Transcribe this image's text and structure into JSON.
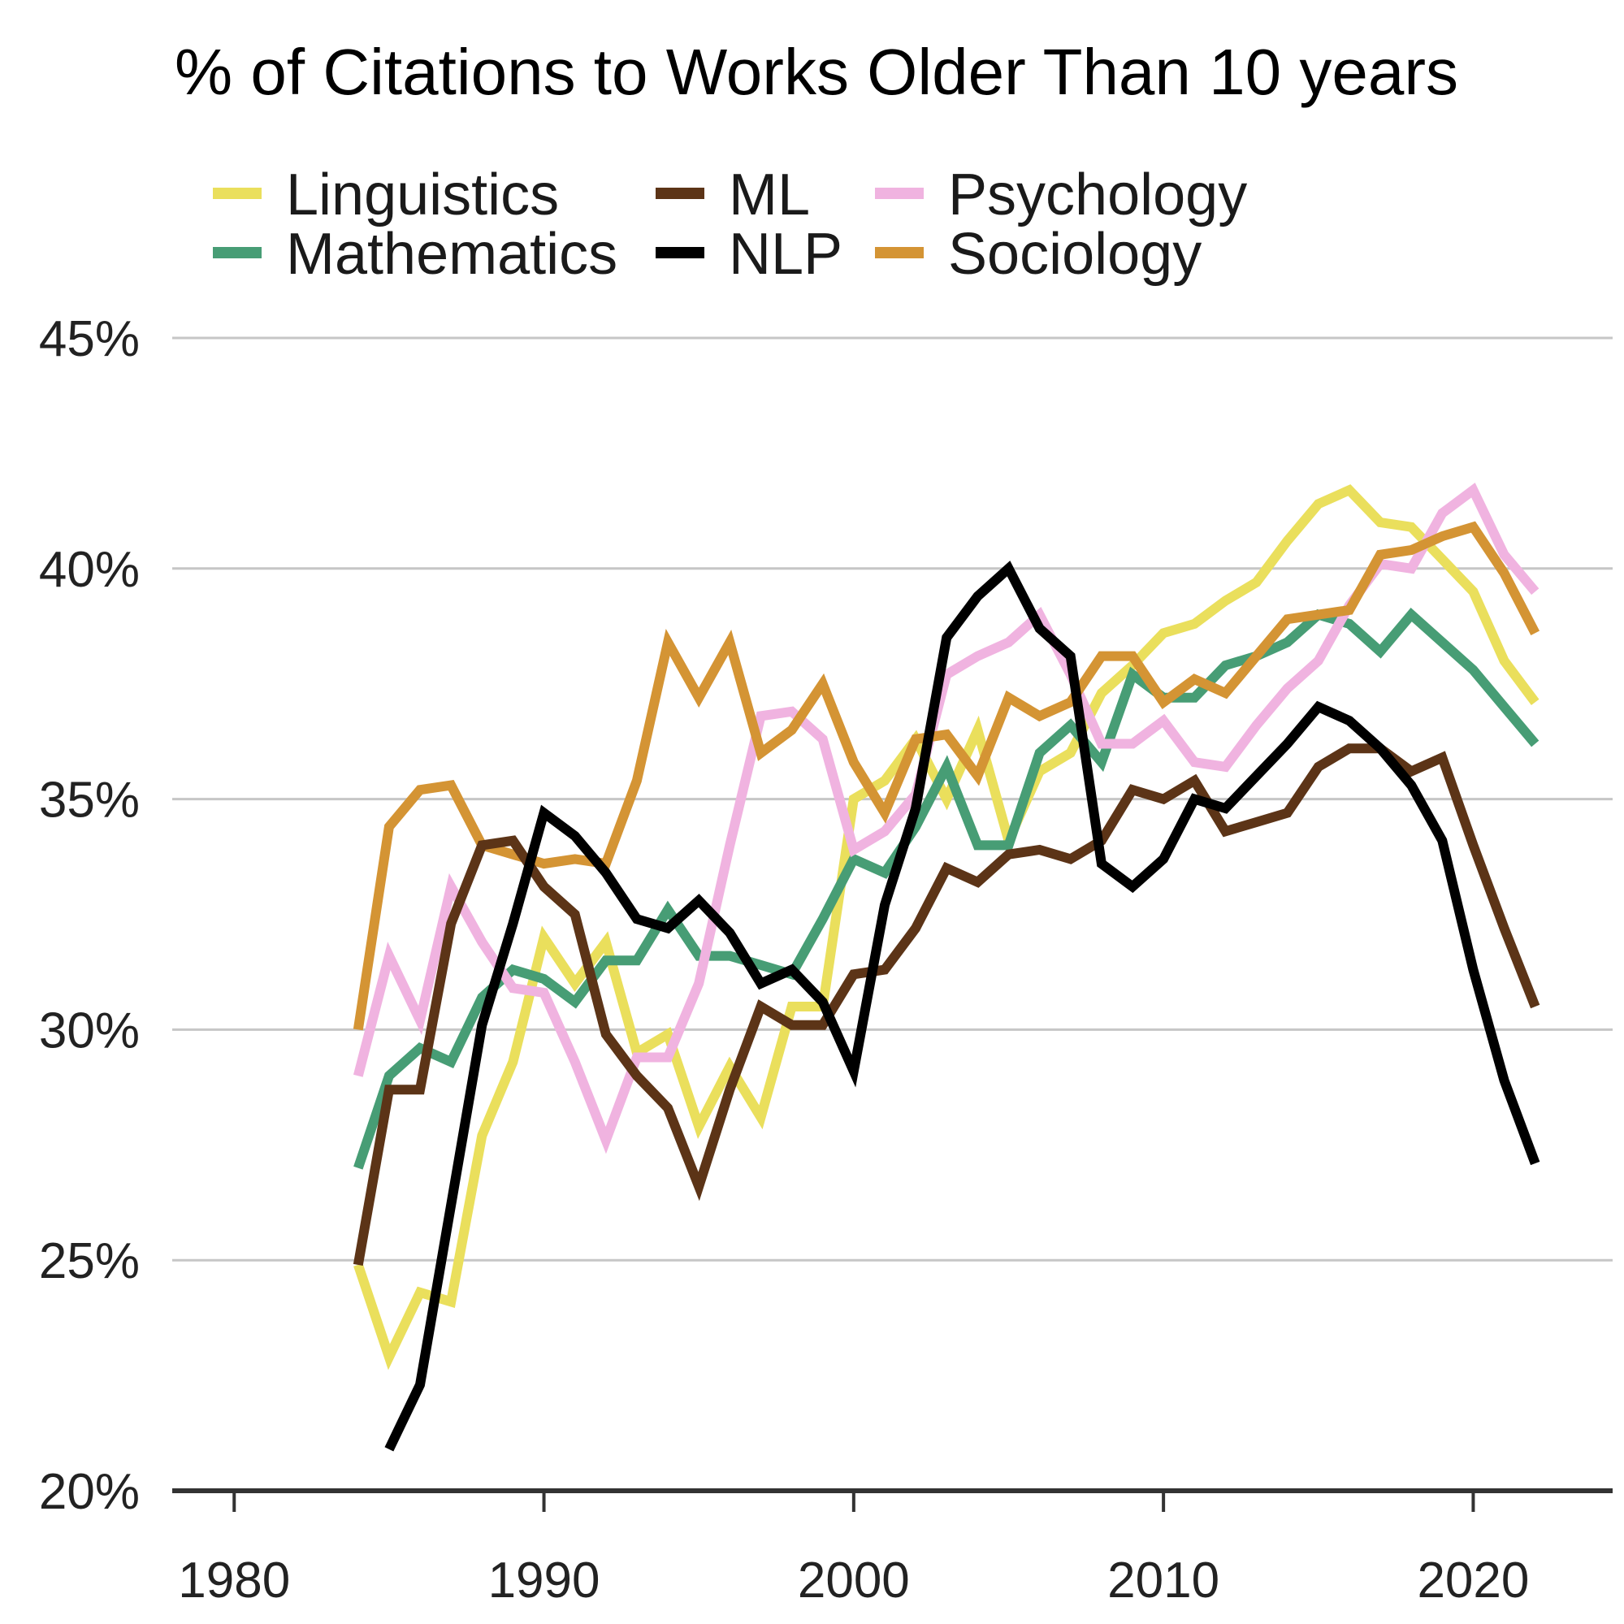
{
  "chart_data": {
    "type": "line",
    "title": "% of Citations to Works Older Than 10 years",
    "xlabel": "",
    "ylabel": "",
    "xlim": [
      1978,
      2024.5
    ],
    "ylim": [
      20,
      45
    ],
    "x_ticks": [
      1980,
      1990,
      2000,
      2010,
      2020
    ],
    "x_tick_labels": [
      "1980",
      "1990",
      "2000",
      "2010",
      "2020"
    ],
    "y_ticks": [
      20,
      25,
      30,
      35,
      40,
      45
    ],
    "y_tick_labels": [
      "20%",
      "25%",
      "30%",
      "35%",
      "40%",
      "45%"
    ],
    "grid": true,
    "legend_position": "top",
    "legend_columns": [
      [
        "Linguistics",
        "Mathematics"
      ],
      [
        "ML",
        "NLP"
      ],
      [
        "Psychology",
        "Sociology"
      ]
    ],
    "series": [
      {
        "name": "Linguistics",
        "color": "#EADF5C",
        "start_year": 1984,
        "values": [
          24.9,
          22.9,
          24.3,
          24.1,
          27.7,
          29.3,
          32.0,
          31.0,
          31.9,
          29.5,
          29.9,
          27.9,
          29.2,
          28.1,
          30.5,
          30.5,
          35.0,
          35.4,
          36.3,
          35.0,
          36.5,
          34.1,
          35.6,
          36.0,
          37.3,
          37.9,
          38.6,
          38.8,
          39.3,
          39.7,
          40.6,
          41.4,
          41.7,
          41.0,
          40.9,
          40.2,
          39.5,
          38.0,
          37.1
        ]
      },
      {
        "name": "Mathematics",
        "color": "#479D75",
        "start_year": 1984,
        "values": [
          27.0,
          29.0,
          29.6,
          29.3,
          30.7,
          31.3,
          31.1,
          30.6,
          31.5,
          31.5,
          32.6,
          31.6,
          31.6,
          31.4,
          31.2,
          32.4,
          33.7,
          33.4,
          34.4,
          35.7,
          34.0,
          34.0,
          36.0,
          36.6,
          35.8,
          37.7,
          37.2,
          37.2,
          37.9,
          38.1,
          38.4,
          39.0,
          38.8,
          38.2,
          39.0,
          38.4,
          37.8,
          37.0,
          36.2
        ]
      },
      {
        "name": "ML",
        "color": "#5C3417",
        "start_year": 1984,
        "values": [
          24.9,
          28.7,
          28.7,
          32.3,
          34.0,
          34.1,
          33.1,
          32.5,
          29.9,
          29.0,
          28.3,
          26.6,
          28.7,
          30.5,
          30.1,
          30.1,
          31.2,
          31.3,
          32.2,
          33.5,
          33.2,
          33.8,
          33.9,
          33.7,
          34.1,
          35.2,
          35.0,
          35.4,
          34.3,
          34.5,
          34.7,
          35.7,
          36.1,
          36.1,
          35.6,
          35.9,
          34.0,
          32.2,
          30.5
        ]
      },
      {
        "name": "NLP",
        "color": "#000000",
        "start_year": 1985,
        "values": [
          20.9,
          22.3,
          26.2,
          30.1,
          32.3,
          34.7,
          34.2,
          33.4,
          32.4,
          32.2,
          32.8,
          32.1,
          31.0,
          31.3,
          30.6,
          29.1,
          32.7,
          34.8,
          38.5,
          39.4,
          40.0,
          38.7,
          38.1,
          33.6,
          33.1,
          33.7,
          35.0,
          34.8,
          35.5,
          36.2,
          37.0,
          36.7,
          36.1,
          35.3,
          34.1,
          31.3,
          28.9,
          27.1
        ]
      },
      {
        "name": "Psychology",
        "color": "#F0B3E0",
        "start_year": 1984,
        "values": [
          29.0,
          31.6,
          30.2,
          33.1,
          31.9,
          30.9,
          30.8,
          29.3,
          27.6,
          29.4,
          29.4,
          31.0,
          34.0,
          36.8,
          36.9,
          36.3,
          33.9,
          34.3,
          35.1,
          37.7,
          38.1,
          38.4,
          39.0,
          37.7,
          36.2,
          36.2,
          36.7,
          35.8,
          35.7,
          36.6,
          37.4,
          38.0,
          39.2,
          40.1,
          40.0,
          41.2,
          41.7,
          40.3,
          39.5
        ]
      },
      {
        "name": "Sociology",
        "color": "#D49434",
        "start_year": 1984,
        "values": [
          30.0,
          34.4,
          35.2,
          35.3,
          34.0,
          33.8,
          33.6,
          33.7,
          33.6,
          35.4,
          38.4,
          37.2,
          38.4,
          36.0,
          36.5,
          37.5,
          35.8,
          34.7,
          36.3,
          36.4,
          35.5,
          37.2,
          36.8,
          37.1,
          38.1,
          38.1,
          37.1,
          37.6,
          37.3,
          38.1,
          38.9,
          39.0,
          39.1,
          40.3,
          40.4,
          40.7,
          40.9,
          39.9,
          38.6
        ]
      }
    ]
  }
}
